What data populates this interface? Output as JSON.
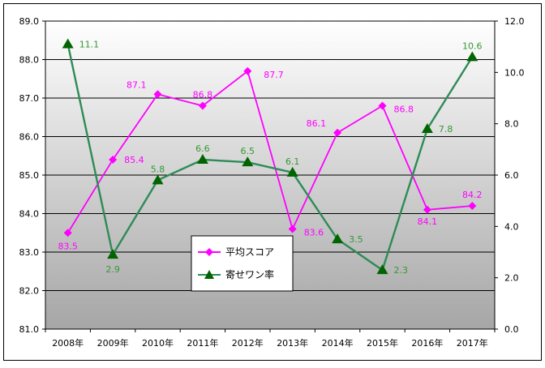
{
  "chart_data": {
    "type": "line",
    "categories": [
      "2008年",
      "2009年",
      "2010年",
      "2011年",
      "2012年",
      "2013年",
      "2014年",
      "2015年",
      "2016年",
      "2017年"
    ],
    "series": [
      {
        "name": "平均スコア",
        "axis": "left",
        "color": "#ff00ff",
        "marker": "diamond",
        "values": [
          83.5,
          85.4,
          87.1,
          86.8,
          87.7,
          83.6,
          86.1,
          86.8,
          84.1,
          84.2
        ],
        "labels": [
          "83.5",
          "85.4",
          "87.1",
          "86.8",
          "87.7",
          "83.6",
          "86.1",
          "86.8",
          "84.1",
          "84.2"
        ]
      },
      {
        "name": "寄せワン率",
        "axis": "right",
        "color": "#2e8b57",
        "marker_color": "#006400",
        "label_color": "#339933",
        "marker": "triangle",
        "values": [
          11.1,
          2.9,
          5.8,
          6.6,
          6.5,
          6.1,
          3.5,
          2.3,
          7.8,
          10.6
        ],
        "labels": [
          "11.1",
          "2.9",
          "5.8",
          "6.6",
          "6.5",
          "6.1",
          "3.5",
          "2.3",
          "7.8",
          "10.6"
        ]
      }
    ],
    "y_left": {
      "ylim": [
        81.0,
        89.0
      ],
      "ticks": [
        "81.0",
        "82.0",
        "83.0",
        "84.0",
        "85.0",
        "86.0",
        "87.0",
        "88.0",
        "89.0"
      ]
    },
    "y_right": {
      "ylim": [
        0.0,
        12.0
      ],
      "ticks": [
        "0.0",
        "2.0",
        "4.0",
        "6.0",
        "8.0",
        "10.0",
        "12.0"
      ]
    },
    "grid": true,
    "legend_position": "bottom-center",
    "plot_background": "gray-gradient"
  }
}
